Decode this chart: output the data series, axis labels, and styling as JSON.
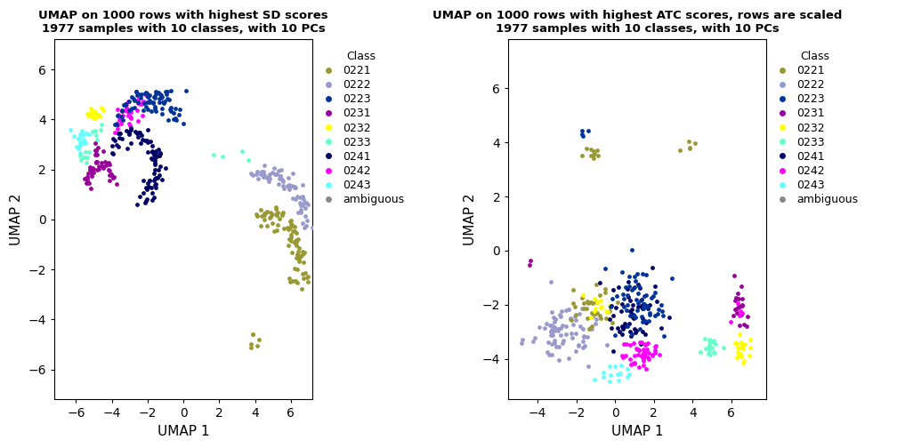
{
  "title1": "UMAP on 1000 rows with highest SD scores\n1977 samples with 10 classes, with 10 PCs",
  "title2": "UMAP on 1000 rows with highest ATC scores, rows are scaled\n1977 samples with 10 classes, with 10 PCs",
  "xlabel": "UMAP 1",
  "ylabel": "UMAP 2",
  "classes": [
    "0221",
    "0222",
    "0223",
    "0231",
    "0232",
    "0233",
    "0241",
    "0242",
    "0243",
    "ambiguous"
  ],
  "colors": {
    "0221": "#999933",
    "0222": "#9999CC",
    "0223": "#003399",
    "0231": "#990099",
    "0232": "#FFFF00",
    "0233": "#66FFCC",
    "0241": "#000066",
    "0242": "#FF00FF",
    "0243": "#66FFFF",
    "ambiguous": "#888888"
  },
  "marker_size": 12,
  "bg_color": "#FFFFFF",
  "legend_fontsize": 9,
  "title_fontsize": 9.5,
  "axis_label_fontsize": 11,
  "plot1": {
    "xlim": [
      -7.2,
      7.2
    ],
    "ylim": [
      -7.2,
      7.2
    ],
    "xticks": [
      -6,
      -4,
      -2,
      0,
      2,
      4,
      6
    ],
    "yticks": [
      -6,
      -4,
      -2,
      0,
      2,
      4,
      6
    ]
  },
  "plot2": {
    "xlim": [
      -5.5,
      7.8
    ],
    "ylim": [
      -5.5,
      7.8
    ],
    "xticks": [
      -4,
      -2,
      0,
      2,
      4,
      6
    ],
    "yticks": [
      -4,
      -2,
      0,
      2,
      4,
      6
    ]
  }
}
